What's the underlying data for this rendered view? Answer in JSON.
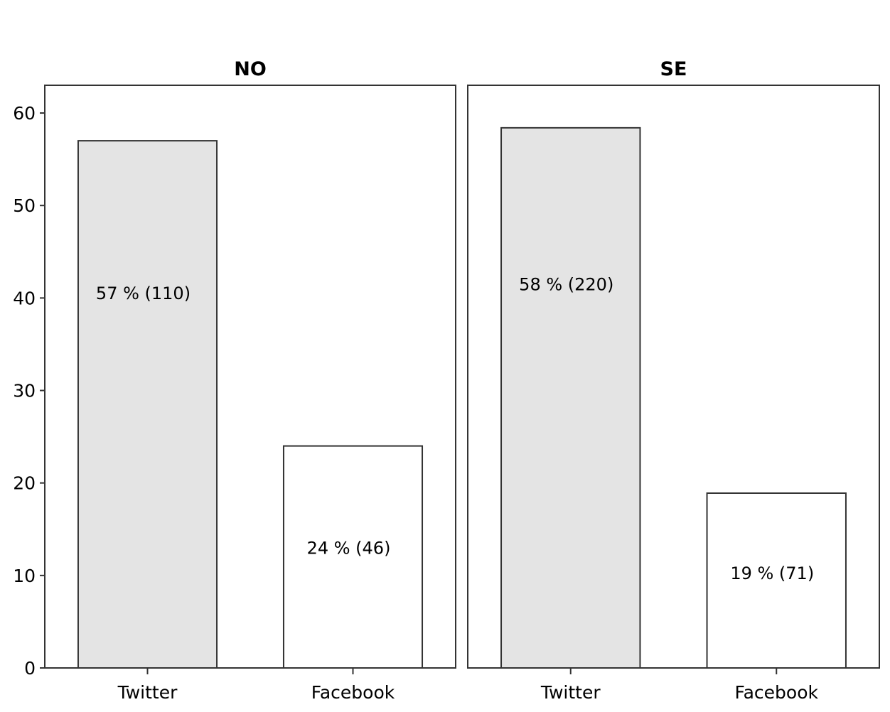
{
  "chart_data": {
    "type": "bar",
    "ylim": [
      0,
      63
    ],
    "yticks": [
      0,
      10,
      20,
      30,
      40,
      50,
      60
    ],
    "grid": false,
    "legend": "none",
    "colors": {
      "Twitter": "#e4e4e4",
      "Facebook": "#ffffff",
      "outline": "#333333"
    },
    "panels": [
      {
        "title": "NO",
        "categories": [
          "Twitter",
          "Facebook"
        ],
        "values": [
          57,
          24
        ],
        "labels": [
          "57 % (110)",
          "24 % (46)"
        ]
      },
      {
        "title": "SE",
        "categories": [
          "Twitter",
          "Facebook"
        ],
        "values": [
          58.4,
          18.9
        ],
        "labels": [
          "58 % (220)",
          "19 % (71)"
        ]
      }
    ]
  }
}
